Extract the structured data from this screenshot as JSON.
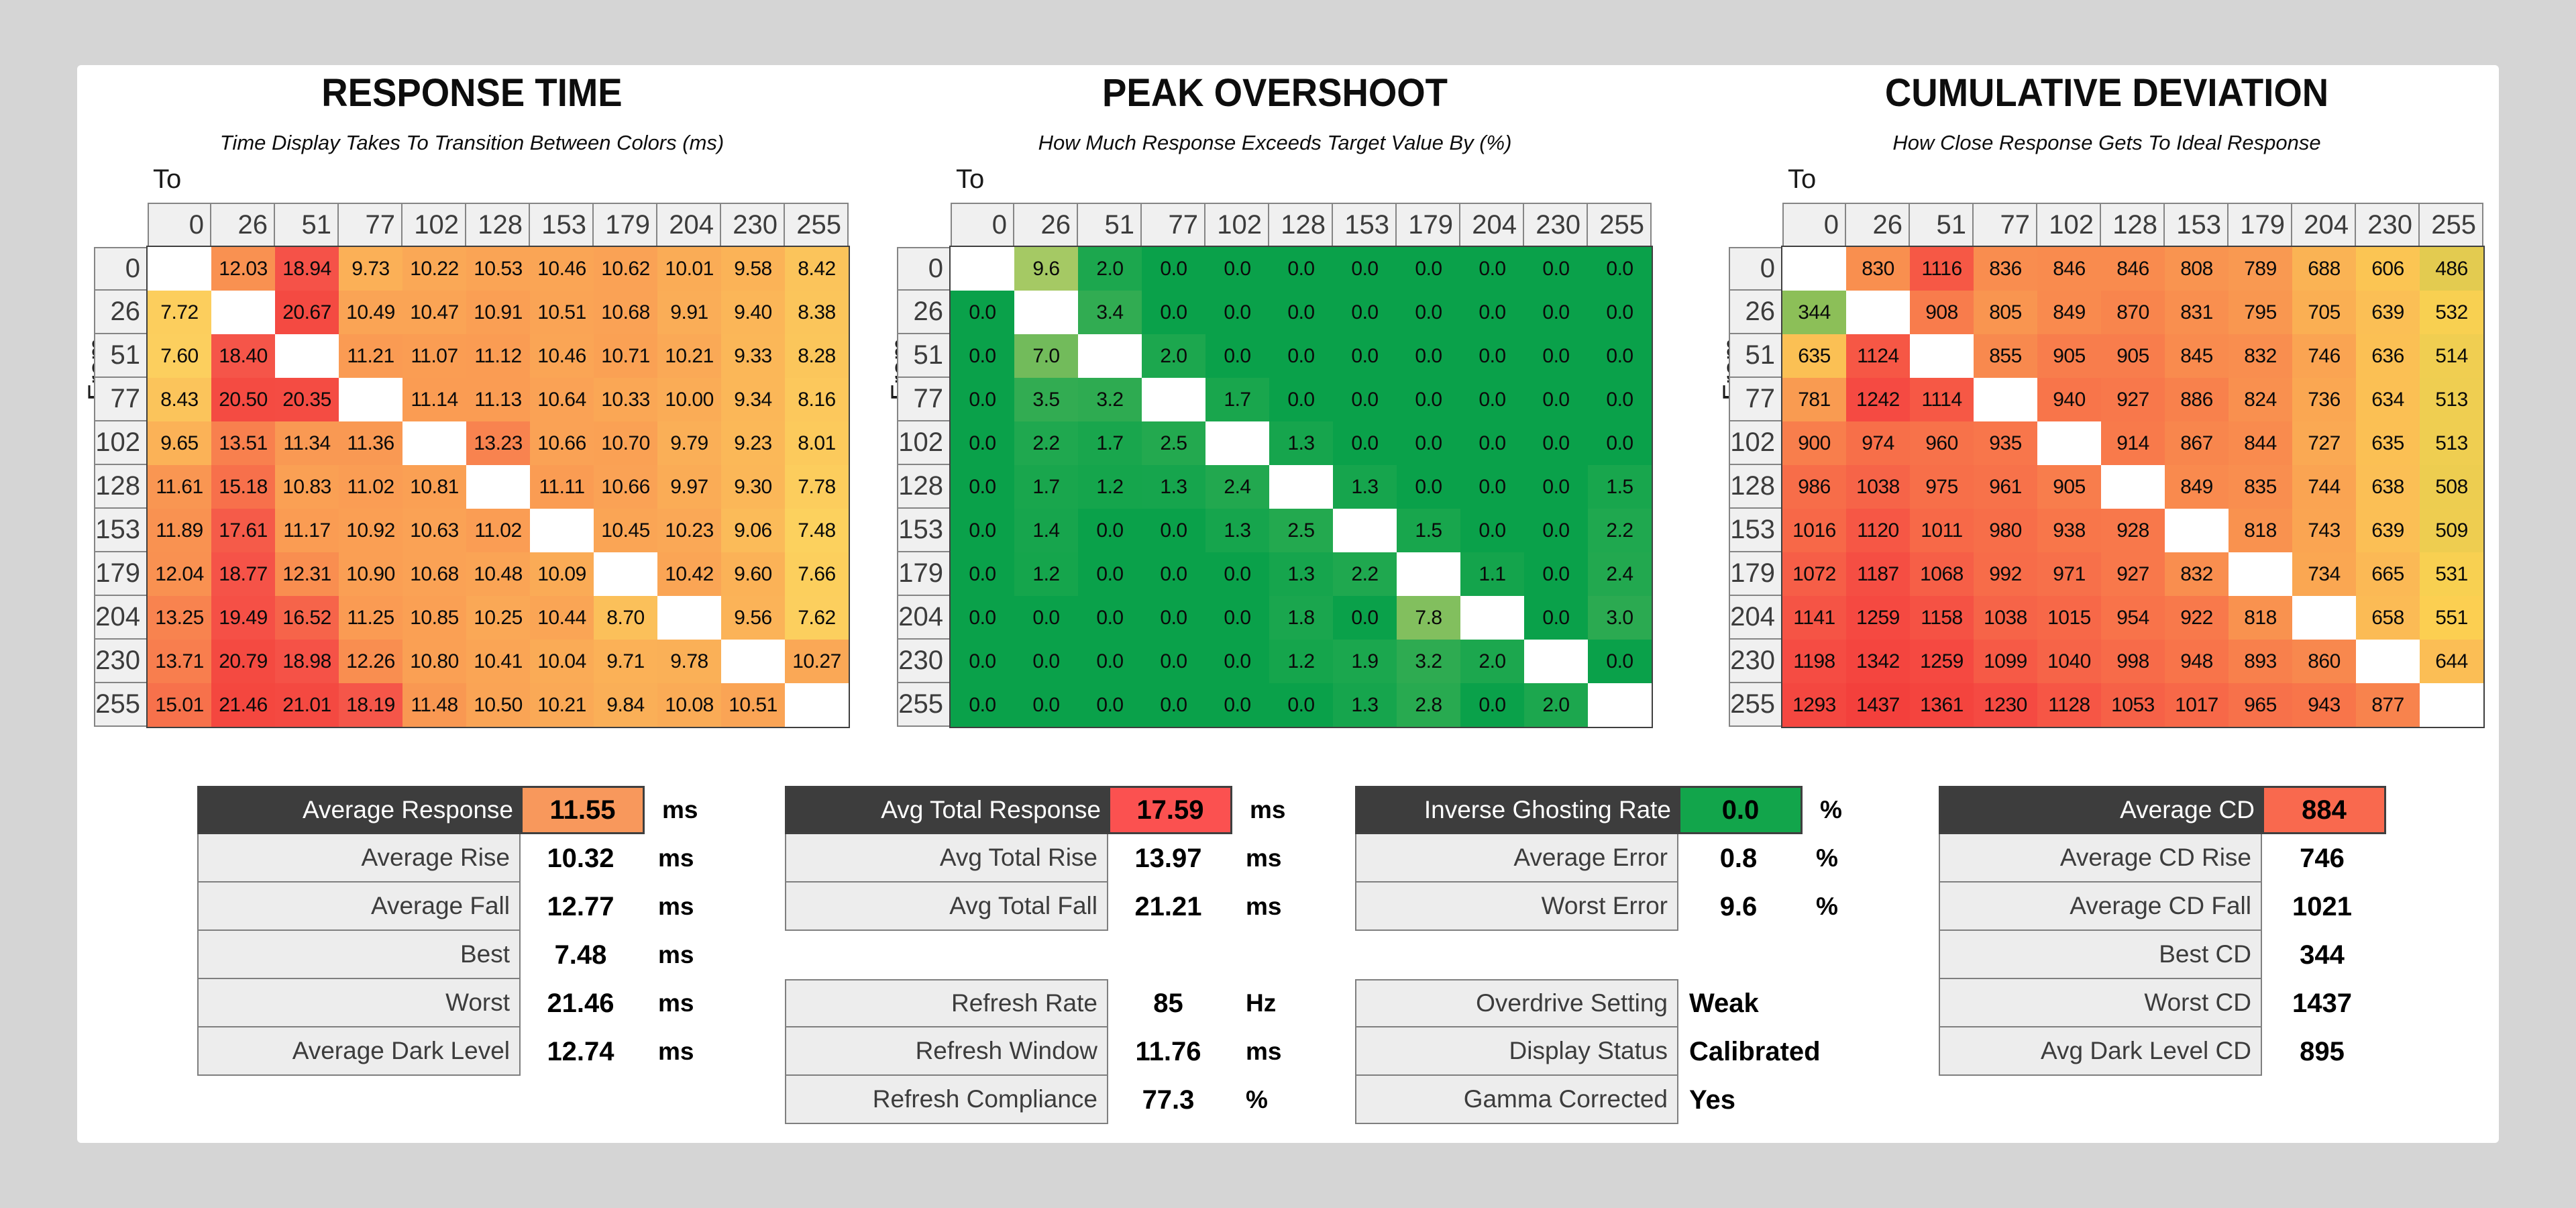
{
  "page": {
    "background": "#d5d5d5",
    "panel_background": "#ffffff",
    "dark_header_color": "#3d3d3d"
  },
  "axis": {
    "to_label": "To",
    "from_label": "From",
    "levels": [
      "0",
      "26",
      "51",
      "77",
      "102",
      "128",
      "153",
      "179",
      "204",
      "230",
      "255"
    ]
  },
  "panels": [
    {
      "title": "RESPONSE TIME",
      "subtitle": "Time Display Takes To Transition Between Colors (ms)"
    },
    {
      "title": "PEAK OVERSHOOT",
      "subtitle": "How Much Response Exceeds Target Value By (%)"
    },
    {
      "title": "CUMULATIVE DEVIATION",
      "subtitle": "How Close Response Gets To Ideal Response"
    }
  ],
  "chart_data": [
    {
      "type": "heatmap",
      "title": "RESPONSE TIME",
      "units": "ms",
      "x_label": "To",
      "y_label": "From",
      "categories": [
        0,
        26,
        51,
        77,
        102,
        128,
        153,
        179,
        204,
        230,
        255
      ],
      "rows": [
        [
          null,
          "12.03",
          "18.94",
          "9.73",
          "10.22",
          "10.53",
          "10.46",
          "10.62",
          "10.01",
          "9.58",
          "8.42"
        ],
        [
          "7.72",
          null,
          "20.67",
          "10.49",
          "10.47",
          "10.91",
          "10.51",
          "10.68",
          "9.91",
          "9.40",
          "8.38"
        ],
        [
          "7.60",
          "18.40",
          null,
          "11.21",
          "11.07",
          "11.12",
          "10.46",
          "10.71",
          "10.21",
          "9.33",
          "8.28"
        ],
        [
          "8.43",
          "20.50",
          "20.35",
          null,
          "11.14",
          "11.13",
          "10.64",
          "10.33",
          "10.00",
          "9.34",
          "8.16"
        ],
        [
          "9.65",
          "13.51",
          "11.34",
          "11.36",
          null,
          "13.23",
          "10.66",
          "10.70",
          "9.79",
          "9.23",
          "8.01"
        ],
        [
          "11.61",
          "15.18",
          "10.83",
          "11.02",
          "10.81",
          null,
          "11.11",
          "10.66",
          "9.97",
          "9.30",
          "7.78"
        ],
        [
          "11.89",
          "17.61",
          "11.17",
          "10.92",
          "10.63",
          "11.02",
          null,
          "10.45",
          "10.23",
          "9.06",
          "7.48"
        ],
        [
          "12.04",
          "18.77",
          "12.31",
          "10.90",
          "10.68",
          "10.48",
          "10.09",
          null,
          "10.42",
          "9.60",
          "7.66"
        ],
        [
          "13.25",
          "19.49",
          "16.52",
          "11.25",
          "10.85",
          "10.25",
          "10.44",
          "8.70",
          null,
          "9.56",
          "7.62"
        ],
        [
          "13.71",
          "20.79",
          "18.98",
          "12.26",
          "10.80",
          "10.41",
          "10.04",
          "9.71",
          "9.78",
          null,
          "10.27"
        ],
        [
          "15.01",
          "21.46",
          "21.01",
          "18.19",
          "11.48",
          "10.50",
          "10.21",
          "9.84",
          "10.08",
          "10.51",
          null
        ]
      ],
      "color_scale": {
        "stops": [
          [
            7.48,
            "#fcd15e"
          ],
          [
            9.0,
            "#fbbc59"
          ],
          [
            10.5,
            "#faa455"
          ],
          [
            12.0,
            "#f99151"
          ],
          [
            14.0,
            "#f87b4d"
          ],
          [
            16.0,
            "#f6684a"
          ],
          [
            18.5,
            "#f55449"
          ],
          [
            21.46,
            "#f4473f"
          ]
        ]
      }
    },
    {
      "type": "heatmap",
      "title": "PEAK OVERSHOOT",
      "units": "%",
      "x_label": "To",
      "y_label": "From",
      "categories": [
        0,
        26,
        51,
        77,
        102,
        128,
        153,
        179,
        204,
        230,
        255
      ],
      "rows": [
        [
          null,
          "9.6",
          "2.0",
          "0.0",
          "0.0",
          "0.0",
          "0.0",
          "0.0",
          "0.0",
          "0.0",
          "0.0"
        ],
        [
          "0.0",
          null,
          "3.4",
          "0.0",
          "0.0",
          "0.0",
          "0.0",
          "0.0",
          "0.0",
          "0.0",
          "0.0"
        ],
        [
          "0.0",
          "7.0",
          null,
          "2.0",
          "0.0",
          "0.0",
          "0.0",
          "0.0",
          "0.0",
          "0.0",
          "0.0"
        ],
        [
          "0.0",
          "3.5",
          "3.2",
          null,
          "1.7",
          "0.0",
          "0.0",
          "0.0",
          "0.0",
          "0.0",
          "0.0"
        ],
        [
          "0.0",
          "2.2",
          "1.7",
          "2.5",
          null,
          "1.3",
          "0.0",
          "0.0",
          "0.0",
          "0.0",
          "0.0"
        ],
        [
          "0.0",
          "1.7",
          "1.2",
          "1.3",
          "2.4",
          null,
          "1.3",
          "0.0",
          "0.0",
          "0.0",
          "1.5"
        ],
        [
          "0.0",
          "1.4",
          "0.0",
          "0.0",
          "1.3",
          "2.5",
          null,
          "1.5",
          "0.0",
          "0.0",
          "2.2"
        ],
        [
          "0.0",
          "1.2",
          "0.0",
          "0.0",
          "0.0",
          "1.3",
          "2.2",
          null,
          "1.1",
          "0.0",
          "2.4"
        ],
        [
          "0.0",
          "0.0",
          "0.0",
          "0.0",
          "0.0",
          "1.8",
          "0.0",
          "7.8",
          null,
          "0.0",
          "3.0"
        ],
        [
          "0.0",
          "0.0",
          "0.0",
          "0.0",
          "0.0",
          "1.2",
          "1.9",
          "3.2",
          "2.0",
          null,
          "0.0"
        ],
        [
          "0.0",
          "0.0",
          "0.0",
          "0.0",
          "0.0",
          "0.0",
          "1.3",
          "2.8",
          "0.0",
          "2.0",
          null
        ]
      ],
      "color_scale": {
        "stops": [
          [
            0,
            "#0aa14a"
          ],
          [
            2.0,
            "#1ca74e"
          ],
          [
            3.5,
            "#32ac52"
          ],
          [
            7.0,
            "#72bb5b"
          ],
          [
            9.6,
            "#a5c964"
          ]
        ]
      }
    },
    {
      "type": "heatmap",
      "title": "CUMULATIVE DEVIATION",
      "units": "",
      "x_label": "To",
      "y_label": "From",
      "categories": [
        0,
        26,
        51,
        77,
        102,
        128,
        153,
        179,
        204,
        230,
        255
      ],
      "rows": [
        [
          null,
          "830",
          "1116",
          "836",
          "846",
          "846",
          "808",
          "789",
          "688",
          "606",
          "486"
        ],
        [
          "344",
          null,
          "908",
          "805",
          "849",
          "870",
          "831",
          "795",
          "705",
          "639",
          "532"
        ],
        [
          "635",
          "1124",
          null,
          "855",
          "905",
          "905",
          "845",
          "832",
          "746",
          "636",
          "514"
        ],
        [
          "781",
          "1242",
          "1114",
          null,
          "940",
          "927",
          "886",
          "824",
          "736",
          "634",
          "513"
        ],
        [
          "900",
          "974",
          "960",
          "935",
          null,
          "914",
          "867",
          "844",
          "727",
          "635",
          "513"
        ],
        [
          "986",
          "1038",
          "975",
          "961",
          "905",
          null,
          "849",
          "835",
          "744",
          "638",
          "508"
        ],
        [
          "1016",
          "1120",
          "1011",
          "980",
          "938",
          "928",
          null,
          "818",
          "743",
          "639",
          "509"
        ],
        [
          "1072",
          "1187",
          "1068",
          "992",
          "971",
          "927",
          "832",
          null,
          "734",
          "665",
          "531"
        ],
        [
          "1141",
          "1259",
          "1158",
          "1038",
          "1015",
          "954",
          "922",
          "818",
          null,
          "658",
          "551"
        ],
        [
          "1198",
          "1342",
          "1259",
          "1099",
          "1040",
          "998",
          "948",
          "893",
          "860",
          null,
          "644"
        ],
        [
          "1293",
          "1437",
          "1361",
          "1230",
          "1128",
          "1053",
          "1017",
          "965",
          "943",
          "877",
          null
        ]
      ],
      "color_scale": {
        "stops": [
          [
            344,
            "#8cbf58"
          ],
          [
            480,
            "#e0ca50"
          ],
          [
            540,
            "#fcd151"
          ],
          [
            650,
            "#fbbd55"
          ],
          [
            780,
            "#f99b51"
          ],
          [
            920,
            "#f8794b"
          ],
          [
            1060,
            "#f66047"
          ],
          [
            1200,
            "#f54c43"
          ],
          [
            1437,
            "#f3403c"
          ]
        ]
      }
    }
  ],
  "summaries": [
    {
      "header": {
        "label": "Average Response",
        "value": "11.55",
        "unit": "ms",
        "value_color": "#f8985c"
      },
      "rows": [
        {
          "label": "Average Rise",
          "value": "10.32",
          "unit": "ms"
        },
        {
          "label": "Average Fall",
          "value": "12.77",
          "unit": "ms"
        },
        {
          "label": "Best",
          "value": "7.48",
          "unit": "ms"
        },
        {
          "label": "Worst",
          "value": "21.46",
          "unit": "ms"
        },
        {
          "label": "Average Dark Level",
          "value": "12.74",
          "unit": "ms"
        }
      ]
    },
    {
      "header": {
        "label": "Avg Total Response",
        "value": "17.59",
        "unit": "ms",
        "value_color": "#fb5150"
      },
      "rows": [
        {
          "label": "Avg Total Rise",
          "value": "13.97",
          "unit": "ms"
        },
        {
          "label": "Avg Total Fall",
          "value": "21.21",
          "unit": "ms"
        }
      ],
      "rows2": [
        {
          "label": "Refresh Rate",
          "value": "85",
          "unit": "Hz"
        },
        {
          "label": "Refresh Window",
          "value": "11.76",
          "unit": "ms"
        },
        {
          "label": "Refresh Compliance",
          "value": "77.3",
          "unit": "%"
        }
      ]
    },
    {
      "header": {
        "label": "Inverse Ghosting Rate",
        "value": "0.0",
        "unit": "%",
        "value_color": "#12a54b"
      },
      "rows": [
        {
          "label": "Average Error",
          "value": "0.8",
          "unit": "%"
        },
        {
          "label": "Worst Error",
          "value": "9.6",
          "unit": "%"
        }
      ],
      "rows2": [
        {
          "label": "Overdrive Setting",
          "value": "Weak",
          "unit": "",
          "word": true
        },
        {
          "label": "Display Status",
          "value": "Calibrated",
          "unit": "",
          "word": true
        },
        {
          "label": "Gamma Corrected",
          "value": "Yes",
          "unit": "",
          "word": true
        }
      ]
    },
    {
      "header": {
        "label": "Average CD",
        "value": "884",
        "unit": "",
        "value_color": "#f9694e"
      },
      "rows": [
        {
          "label": "Average CD Rise",
          "value": "746",
          "unit": ""
        },
        {
          "label": "Average CD Fall",
          "value": "1021",
          "unit": ""
        },
        {
          "label": "Best CD",
          "value": "344",
          "unit": ""
        },
        {
          "label": "Worst CD",
          "value": "1437",
          "unit": ""
        },
        {
          "label": "Avg Dark Level CD",
          "value": "895",
          "unit": ""
        }
      ]
    }
  ]
}
